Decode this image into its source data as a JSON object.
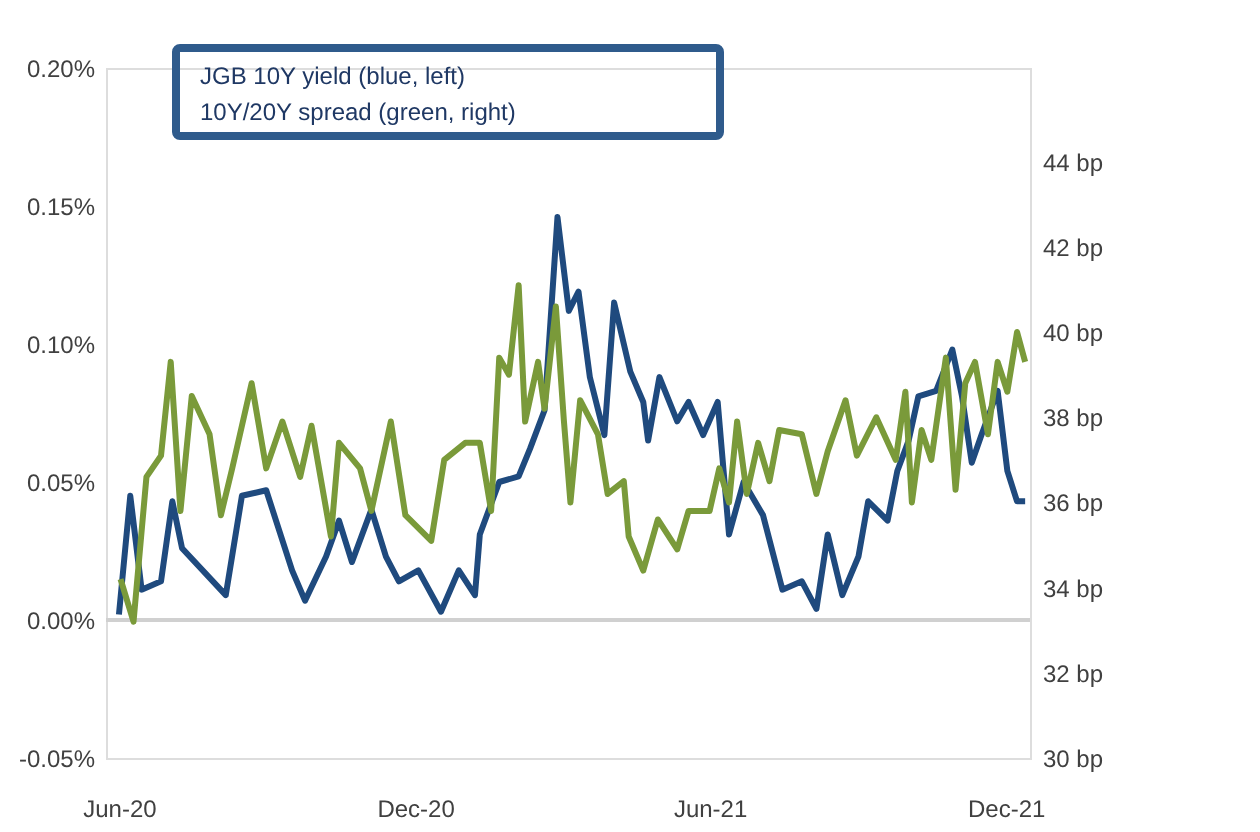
{
  "chart_data": {
    "type": "line",
    "annotations": [
      "JGB  10Y  yield  (blue,  left)",
      "10Y/20Y  spread  (green,  right)"
    ],
    "series": [
      {
        "name": null,
        "color": "#1f4a7e",
        "axis": "y",
        "x": [
          "2020-06-01",
          "2020-06-08",
          "2020-06-15",
          "2020-06-27",
          "2020-07-04",
          "2020-07-10",
          "2020-08-06",
          "2020-08-16",
          "2020-08-31",
          "2020-09-16",
          "2020-09-24",
          "2020-10-07",
          "2020-10-15",
          "2020-10-23",
          "2020-11-04",
          "2020-11-13",
          "2020-11-21",
          "2020-12-03",
          "2020-12-17",
          "2020-12-28",
          "2021-01-07",
          "2021-01-10",
          "2021-01-22",
          "2021-02-03",
          "2021-02-10",
          "2021-02-19",
          "2021-02-27",
          "2021-03-06",
          "2021-03-12",
          "2021-03-19",
          "2021-03-28",
          "2021-04-03",
          "2021-04-13",
          "2021-04-21",
          "2021-04-24",
          "2021-05-01",
          "2021-05-12",
          "2021-05-19",
          "2021-05-28",
          "2021-06-06",
          "2021-06-13",
          "2021-06-22",
          "2021-07-04",
          "2021-07-16",
          "2021-07-28",
          "2021-08-06",
          "2021-08-13",
          "2021-08-22",
          "2021-09-01",
          "2021-09-07",
          "2021-09-19",
          "2021-09-25",
          "2021-10-02",
          "2021-10-08",
          "2021-10-19",
          "2021-10-29",
          "2021-11-04",
          "2021-11-10",
          "2021-11-16",
          "2021-11-26",
          "2021-12-02",
          "2021-12-08",
          "2021-12-13"
        ],
        "values": [
          0.002,
          0.045,
          0.011,
          0.014,
          0.043,
          0.026,
          0.009,
          0.045,
          0.047,
          0.018,
          0.007,
          0.023,
          0.036,
          0.021,
          0.04,
          0.023,
          0.014,
          0.018,
          0.003,
          0.018,
          0.009,
          0.031,
          0.05,
          0.052,
          0.062,
          0.076,
          0.146,
          0.112,
          0.119,
          0.088,
          0.067,
          0.115,
          0.09,
          0.079,
          0.065,
          0.088,
          0.072,
          0.079,
          0.067,
          0.079,
          0.031,
          0.05,
          0.038,
          0.011,
          0.014,
          0.004,
          0.031,
          0.009,
          0.023,
          0.043,
          0.036,
          0.054,
          0.065,
          0.081,
          0.083,
          0.098,
          0.081,
          0.057,
          0.067,
          0.083,
          0.054,
          0.043,
          0.043
        ]
      },
      {
        "name": null,
        "color": "#7a9a3a",
        "axis": "y2",
        "x": [
          "2020-06-02",
          "2020-06-10",
          "2020-06-18",
          "2020-06-27",
          "2020-07-03",
          "2020-07-09",
          "2020-07-16",
          "2020-07-27",
          "2020-08-03",
          "2020-08-10",
          "2020-08-22",
          "2020-08-31",
          "2020-09-10",
          "2020-09-21",
          "2020-09-28",
          "2020-10-10",
          "2020-10-15",
          "2020-10-28",
          "2020-11-04",
          "2020-11-16",
          "2020-11-25",
          "2020-12-11",
          "2020-12-19",
          "2021-01-01",
          "2021-01-10",
          "2021-01-17",
          "2021-01-22",
          "2021-01-28",
          "2021-02-03",
          "2021-02-07",
          "2021-02-15",
          "2021-02-19",
          "2021-02-26",
          "2021-03-03",
          "2021-03-07",
          "2021-03-13",
          "2021-03-24",
          "2021-03-30",
          "2021-04-09",
          "2021-04-12",
          "2021-04-21",
          "2021-04-30",
          "2021-05-12",
          "2021-05-19",
          "2021-06-01",
          "2021-06-07",
          "2021-06-13",
          "2021-06-18",
          "2021-06-24",
          "2021-07-01",
          "2021-07-08",
          "2021-07-14",
          "2021-07-28",
          "2021-08-06",
          "2021-08-13",
          "2021-08-24",
          "2021-08-31",
          "2021-09-12",
          "2021-09-24",
          "2021-09-30",
          "2021-10-04",
          "2021-10-10",
          "2021-10-16",
          "2021-10-25",
          "2021-10-31",
          "2021-11-06",
          "2021-11-12",
          "2021-11-20",
          "2021-11-26",
          "2021-12-02",
          "2021-12-08",
          "2021-12-13"
        ],
        "values": [
          34.2,
          33.2,
          36.6,
          37.1,
          39.3,
          35.8,
          38.5,
          37.6,
          35.7,
          36.8,
          38.8,
          36.8,
          37.9,
          36.6,
          37.8,
          35.2,
          37.4,
          36.8,
          35.8,
          37.9,
          35.7,
          35.1,
          37.0,
          37.4,
          37.4,
          35.8,
          39.4,
          39.0,
          41.1,
          37.9,
          39.3,
          38.2,
          40.6,
          37.9,
          36.0,
          38.4,
          37.6,
          36.2,
          36.5,
          35.2,
          34.4,
          35.6,
          34.9,
          35.8,
          35.8,
          36.8,
          36.0,
          37.9,
          36.2,
          37.4,
          36.5,
          37.7,
          37.6,
          36.2,
          37.2,
          38.4,
          37.1,
          38.0,
          37.0,
          38.6,
          36.0,
          37.7,
          37.0,
          39.4,
          36.3,
          38.8,
          39.3,
          37.6,
          39.3,
          38.6,
          40.0,
          39.3
        ]
      }
    ],
    "xlim": [
      "2020-05-24",
      "2021-12-16"
    ],
    "xticks": [
      {
        "value": "2020-06-01",
        "label": "Jun-20"
      },
      {
        "value": "2020-12-01",
        "label": "Dec-20"
      },
      {
        "value": "2021-06-01",
        "label": "Jun-21"
      },
      {
        "value": "2021-12-01",
        "label": "Dec-21"
      }
    ],
    "ylim": [
      -0.05,
      0.2
    ],
    "yticks": [
      {
        "value": -0.05,
        "label": "-0.05%"
      },
      {
        "value": 0.0,
        "label": "0.00%"
      },
      {
        "value": 0.05,
        "label": "0.05%"
      },
      {
        "value": 0.1,
        "label": "0.10%"
      },
      {
        "value": 0.15,
        "label": "0.15%"
      },
      {
        "value": 0.2,
        "label": "0.20%"
      }
    ],
    "y2lim": [
      30,
      46.2
    ],
    "y2ticks": [
      {
        "value": 30,
        "label": "30 bp"
      },
      {
        "value": 32,
        "label": "32 bp"
      },
      {
        "value": 34,
        "label": "34 bp"
      },
      {
        "value": 36,
        "label": "36 bp"
      },
      {
        "value": 38,
        "label": "38 bp"
      },
      {
        "value": 40,
        "label": "40 bp"
      },
      {
        "value": 42,
        "label": "42 bp"
      },
      {
        "value": 44,
        "label": "44 bp"
      }
    ],
    "ref_lines": [
      {
        "axis": "y",
        "value": 0,
        "color": "#d0d0d0"
      }
    ],
    "grid": false,
    "marker": "none",
    "line_style": "solid"
  }
}
